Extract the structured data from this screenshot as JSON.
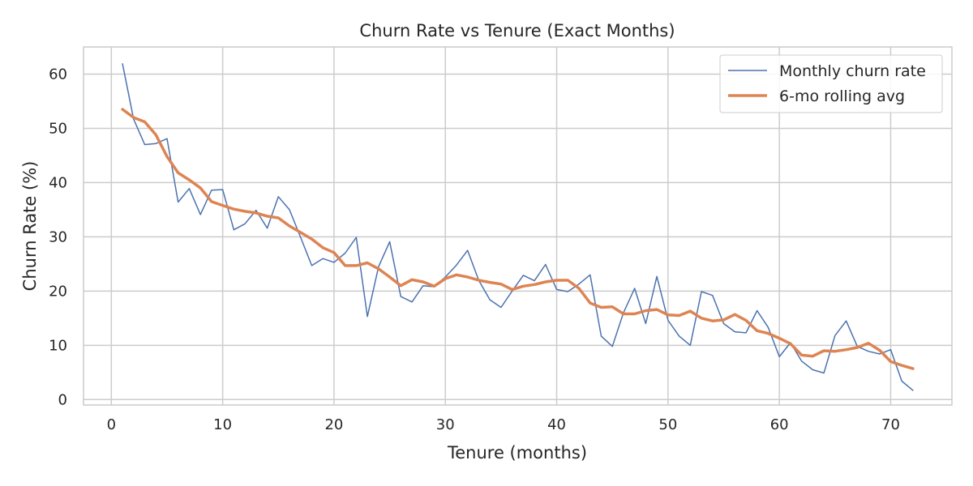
{
  "chart_data": {
    "type": "line",
    "title": "Churn Rate vs Tenure (Exact Months)",
    "xlabel": "Tenure (months)",
    "ylabel": "Churn Rate (%)",
    "xlim": [
      -2.5,
      75.5
    ],
    "ylim": [
      -1,
      65
    ],
    "xticks": [
      0,
      10,
      20,
      30,
      40,
      50,
      60,
      70
    ],
    "yticks": [
      0,
      10,
      20,
      30,
      40,
      50,
      60
    ],
    "grid": true,
    "legend_position": "top-right",
    "x": [
      1,
      2,
      3,
      4,
      5,
      6,
      7,
      8,
      9,
      10,
      11,
      12,
      13,
      14,
      15,
      16,
      17,
      18,
      19,
      20,
      21,
      22,
      23,
      24,
      25,
      26,
      27,
      28,
      29,
      30,
      31,
      32,
      33,
      34,
      35,
      36,
      37,
      38,
      39,
      40,
      41,
      42,
      43,
      44,
      45,
      46,
      47,
      48,
      49,
      50,
      51,
      52,
      53,
      54,
      55,
      56,
      57,
      58,
      59,
      60,
      61,
      62,
      63,
      64,
      65,
      66,
      67,
      68,
      69,
      70,
      71,
      72
    ],
    "series": [
      {
        "name": "Monthly churn rate",
        "color": "#4c72b0",
        "values": [
          61.9,
          51.7,
          47.0,
          47.2,
          48.1,
          36.4,
          38.9,
          34.1,
          38.6,
          38.7,
          31.3,
          32.4,
          34.9,
          31.6,
          37.4,
          35.0,
          29.9,
          24.7,
          26.0,
          25.3,
          27.0,
          29.9,
          15.3,
          24.5,
          29.1,
          19.0,
          18.0,
          21.0,
          20.8,
          22.6,
          24.8,
          27.5,
          22.0,
          18.4,
          17.0,
          20.0,
          22.9,
          21.9,
          24.9,
          20.3,
          19.9,
          21.3,
          23.0,
          11.7,
          9.8,
          16.0,
          20.5,
          14.0,
          22.7,
          14.6,
          11.7,
          10.0,
          19.9,
          19.2,
          14.0,
          12.5,
          12.3,
          16.4,
          13.3,
          7.9,
          10.5,
          7.1,
          5.5,
          4.9,
          11.8,
          14.5,
          9.8,
          8.9,
          8.4,
          9.2,
          3.4,
          1.7
        ]
      },
      {
        "name": "6-mo rolling avg",
        "color": "#dd8452",
        "values": [
          53.5,
          52.0,
          51.2,
          48.8,
          44.8,
          41.8,
          40.5,
          39.0,
          36.5,
          35.8,
          35.1,
          34.7,
          34.4,
          33.8,
          33.5,
          32.0,
          30.8,
          29.6,
          28.0,
          27.1,
          24.7,
          24.7,
          25.2,
          24.1,
          22.6,
          21.0,
          22.1,
          21.7,
          20.9,
          22.3,
          23.0,
          22.6,
          22.0,
          21.6,
          21.3,
          20.3,
          20.9,
          21.2,
          21.7,
          22.0,
          22.0,
          20.5,
          17.8,
          17.0,
          17.1,
          15.8,
          15.8,
          16.4,
          16.6,
          15.6,
          15.5,
          16.3,
          15.0,
          14.5,
          14.7,
          15.7,
          14.6,
          12.7,
          12.2,
          11.3,
          10.3,
          8.2,
          8.0,
          9.0,
          8.9,
          9.2,
          9.6,
          10.4,
          9.1,
          7.0,
          6.3,
          5.7
        ]
      }
    ]
  }
}
